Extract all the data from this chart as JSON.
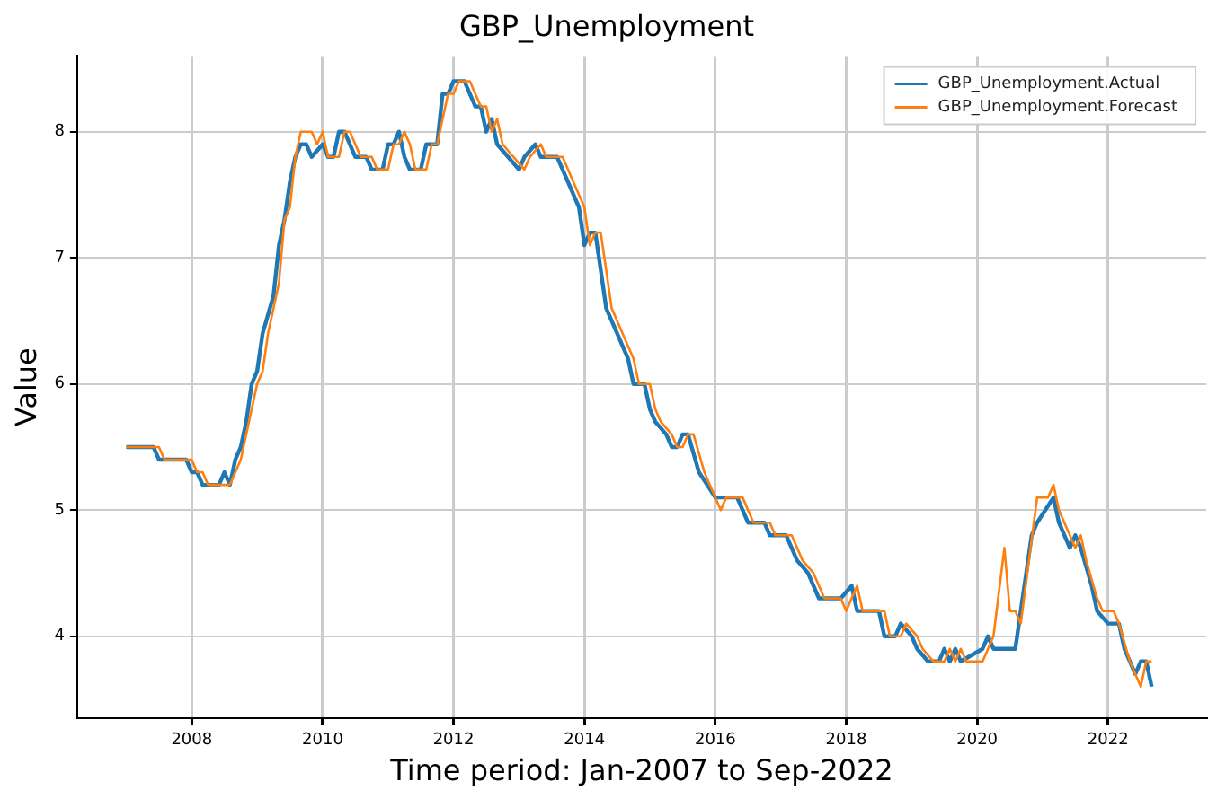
{
  "chart_data": {
    "type": "line",
    "title": "GBP_Unemployment",
    "xlabel": "Time period: Jan-2007 to Sep-2022",
    "ylabel": "Value",
    "xlim": [
      "2006-04",
      "2023-07"
    ],
    "xticks": [
      "2008",
      "2010",
      "2012",
      "2014",
      "2016",
      "2018",
      "2020",
      "2022"
    ],
    "ylim": [
      3.35,
      8.6
    ],
    "yticks": [
      4,
      5,
      6,
      7,
      8
    ],
    "grid": true,
    "legend": "top right",
    "marker": "none",
    "line_style": "solid",
    "series": [
      {
        "name": "GBP_Unemployment.Actual",
        "color": "#1f77b4",
        "x": [
          "2007-01",
          "2007-06",
          "2007-07",
          "2007-12",
          "2008-01",
          "2008-02",
          "2008-03",
          "2008-06",
          "2008-07",
          "2008-08",
          "2008-09",
          "2008-10",
          "2008-11",
          "2008-12",
          "2009-01",
          "2009-02",
          "2009-04",
          "2009-05",
          "2009-06",
          "2009-07",
          "2009-08",
          "2009-09",
          "2009-10",
          "2009-11",
          "2010-01",
          "2010-02",
          "2010-03",
          "2010-04",
          "2010-05",
          "2010-07",
          "2010-09",
          "2010-10",
          "2010-12",
          "2011-01",
          "2011-02",
          "2011-03",
          "2011-04",
          "2011-05",
          "2011-07",
          "2011-08",
          "2011-10",
          "2011-11",
          "2011-12",
          "2012-01",
          "2012-03",
          "2012-05",
          "2012-06",
          "2012-07",
          "2012-08",
          "2012-09",
          "2012-11",
          "2013-01",
          "2013-02",
          "2013-04",
          "2013-05",
          "2013-08",
          "2013-09",
          "2013-10",
          "2013-12",
          "2014-01",
          "2014-02",
          "2014-03",
          "2014-04",
          "2014-05",
          "2014-07",
          "2014-09",
          "2014-10",
          "2014-12",
          "2015-01",
          "2015-02",
          "2015-04",
          "2015-05",
          "2015-06",
          "2015-07",
          "2015-08",
          "2015-10",
          "2016-01",
          "2016-05",
          "2016-07",
          "2016-10",
          "2016-11",
          "2017-02",
          "2017-03",
          "2017-04",
          "2017-06",
          "2017-08",
          "2017-12",
          "2018-02",
          "2018-03",
          "2018-07",
          "2018-08",
          "2018-10",
          "2018-11",
          "2019-01",
          "2019-02",
          "2019-04",
          "2019-06",
          "2019-07",
          "2019-08",
          "2019-09",
          "2019-10",
          "2020-02",
          "2020-03",
          "2020-04",
          "2020-08",
          "2020-09",
          "2020-11",
          "2020-12",
          "2021-03",
          "2021-04",
          "2021-06",
          "2021-07",
          "2021-08",
          "2021-10",
          "2021-11",
          "2022-01",
          "2022-03",
          "2022-04",
          "2022-06",
          "2022-07",
          "2022-08",
          "2022-09"
        ],
        "values": [
          5.5,
          5.5,
          5.4,
          5.4,
          5.3,
          5.3,
          5.2,
          5.2,
          5.3,
          5.2,
          5.4,
          5.5,
          5.7,
          6.0,
          6.1,
          6.4,
          6.7,
          7.1,
          7.3,
          7.6,
          7.8,
          7.9,
          7.9,
          7.8,
          7.9,
          7.8,
          7.8,
          8.0,
          8.0,
          7.8,
          7.8,
          7.7,
          7.7,
          7.9,
          7.9,
          8.0,
          7.8,
          7.7,
          7.7,
          7.9,
          7.9,
          8.3,
          8.3,
          8.4,
          8.4,
          8.2,
          8.2,
          8.0,
          8.1,
          7.9,
          7.8,
          7.7,
          7.8,
          7.9,
          7.8,
          7.8,
          7.7,
          7.6,
          7.4,
          7.1,
          7.2,
          7.2,
          6.9,
          6.6,
          6.4,
          6.2,
          6.0,
          6.0,
          5.8,
          5.7,
          5.6,
          5.5,
          5.5,
          5.6,
          5.6,
          5.3,
          5.1,
          5.1,
          4.9,
          4.9,
          4.8,
          4.8,
          4.7,
          4.6,
          4.5,
          4.3,
          4.3,
          4.4,
          4.2,
          4.2,
          4.0,
          4.0,
          4.1,
          4.0,
          3.9,
          3.8,
          3.8,
          3.9,
          3.8,
          3.9,
          3.8,
          3.9,
          4.0,
          3.9,
          3.9,
          4.2,
          4.8,
          4.9,
          5.1,
          4.9,
          4.7,
          4.8,
          4.7,
          4.4,
          4.2,
          4.1,
          4.1,
          3.9,
          3.7,
          3.8,
          3.8,
          3.6
        ]
      },
      {
        "name": "GBP_Unemployment.Forecast",
        "color": "#ff7f0e",
        "x": [
          "2007-01",
          "2007-07",
          "2007-08",
          "2008-01",
          "2008-02",
          "2008-03",
          "2008-04",
          "2008-08",
          "2008-09",
          "2008-10",
          "2008-11",
          "2008-12",
          "2009-01",
          "2009-02",
          "2009-03",
          "2009-05",
          "2009-06",
          "2009-07",
          "2009-08",
          "2009-09",
          "2009-11",
          "2009-12",
          "2010-01",
          "2010-02",
          "2010-04",
          "2010-05",
          "2010-06",
          "2010-08",
          "2010-10",
          "2010-11",
          "2011-01",
          "2011-02",
          "2011-03",
          "2011-04",
          "2011-05",
          "2011-06",
          "2011-08",
          "2011-09",
          "2011-10",
          "2011-12",
          "2012-01",
          "2012-02",
          "2012-04",
          "2012-06",
          "2012-07",
          "2012-08",
          "2012-09",
          "2012-10",
          "2012-12",
          "2013-02",
          "2013-03",
          "2013-05",
          "2013-06",
          "2013-09",
          "2013-10",
          "2013-11",
          "2014-01",
          "2014-02",
          "2014-03",
          "2014-04",
          "2014-05",
          "2014-06",
          "2014-08",
          "2014-10",
          "2014-11",
          "2015-01",
          "2015-02",
          "2015-03",
          "2015-05",
          "2015-06",
          "2015-07",
          "2015-08",
          "2015-09",
          "2015-11",
          "2016-02",
          "2016-03",
          "2016-06",
          "2016-08",
          "2016-11",
          "2016-12",
          "2017-03",
          "2017-04",
          "2017-05",
          "2017-07",
          "2017-09",
          "2017-12",
          "2018-01",
          "2018-03",
          "2018-04",
          "2018-08",
          "2018-09",
          "2018-11",
          "2018-12",
          "2019-02",
          "2019-03",
          "2019-05",
          "2019-07",
          "2019-08",
          "2019-09",
          "2019-10",
          "2019-11",
          "2020-02",
          "2020-04",
          "2020-06",
          "2020-07",
          "2020-08",
          "2020-09",
          "2020-12",
          "2021-02",
          "2021-03",
          "2021-04",
          "2021-06",
          "2021-07",
          "2021-08",
          "2021-09",
          "2021-11",
          "2021-12",
          "2022-02",
          "2022-03",
          "2022-05",
          "2022-07",
          "2022-08",
          "2022-09"
        ],
        "values": [
          5.5,
          5.5,
          5.4,
          5.4,
          5.3,
          5.3,
          5.2,
          5.2,
          5.3,
          5.4,
          5.6,
          5.8,
          6.0,
          6.1,
          6.4,
          6.8,
          7.3,
          7.4,
          7.8,
          8.0,
          8.0,
          7.9,
          8.0,
          7.8,
          7.8,
          8.0,
          8.0,
          7.8,
          7.8,
          7.7,
          7.7,
          7.9,
          7.9,
          8.0,
          7.9,
          7.7,
          7.7,
          7.9,
          7.9,
          8.3,
          8.3,
          8.4,
          8.4,
          8.2,
          8.2,
          8.0,
          8.1,
          7.9,
          7.8,
          7.7,
          7.8,
          7.9,
          7.8,
          7.8,
          7.7,
          7.6,
          7.4,
          7.1,
          7.2,
          7.2,
          6.9,
          6.6,
          6.4,
          6.2,
          6.0,
          6.0,
          5.8,
          5.7,
          5.6,
          5.5,
          5.5,
          5.6,
          5.6,
          5.3,
          5.0,
          5.1,
          5.1,
          4.9,
          4.9,
          4.8,
          4.8,
          4.7,
          4.6,
          4.5,
          4.3,
          4.3,
          4.2,
          4.4,
          4.2,
          4.2,
          4.0,
          4.0,
          4.1,
          4.0,
          3.9,
          3.8,
          3.8,
          3.9,
          3.8,
          3.9,
          3.8,
          3.8,
          4.0,
          4.7,
          4.2,
          4.2,
          4.1,
          5.1,
          5.1,
          5.2,
          5.0,
          4.8,
          4.7,
          4.8,
          4.6,
          4.3,
          4.2,
          4.2,
          4.1,
          3.8,
          3.6,
          3.8,
          3.8
        ]
      }
    ]
  }
}
